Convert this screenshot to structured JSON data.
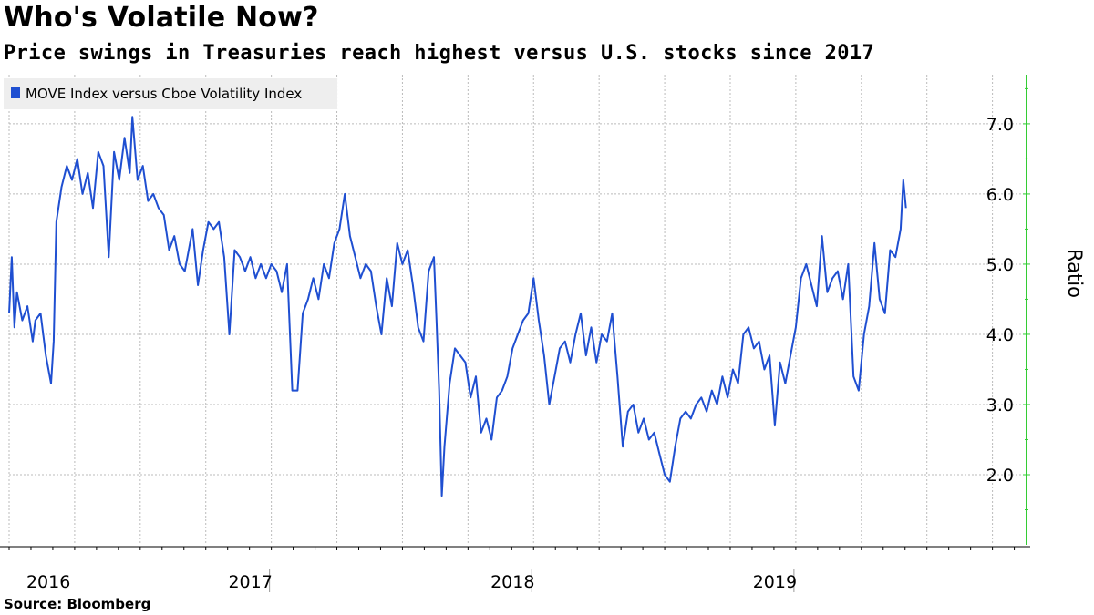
{
  "header": {
    "title": "Who's Volatile Now?",
    "subtitle": "Price swings in Treasuries reach highest versus U.S. stocks since 2017"
  },
  "footer": {
    "source": "Source:  Bloomberg"
  },
  "colors": {
    "series": "#1f4fd1",
    "axis": "#33cc33",
    "grid": "#bbbbbb"
  },
  "chart_data": {
    "type": "line",
    "ylabel": "Ratio",
    "ylim": [
      1.0,
      7.7
    ],
    "yticks": [
      2.0,
      3.0,
      4.0,
      5.0,
      6.0,
      7.0
    ],
    "ytick_labels": [
      "2.0",
      "3.0",
      "4.0",
      "5.0",
      "6.0",
      "7.0"
    ],
    "xlim": [
      2016.0,
      2019.88
    ],
    "year_labels": [
      {
        "label": "2016",
        "at": 2016.15
      },
      {
        "label": "2017",
        "at": 2016.92
      },
      {
        "label": "2018",
        "at": 2017.92
      },
      {
        "label": "2019",
        "at": 2018.92
      }
    ],
    "grid": true,
    "legend": {
      "position": "top-left",
      "entries": [
        "MOVE Index versus Cboe Volatility Index"
      ]
    },
    "series": [
      {
        "name": "MOVE Index versus Cboe Volatility Index",
        "points": [
          [
            2016.0,
            4.3
          ],
          [
            2016.01,
            5.1
          ],
          [
            2016.02,
            4.1
          ],
          [
            2016.03,
            4.6
          ],
          [
            2016.05,
            4.2
          ],
          [
            2016.07,
            4.4
          ],
          [
            2016.09,
            3.9
          ],
          [
            2016.1,
            4.2
          ],
          [
            2016.12,
            4.3
          ],
          [
            2016.14,
            3.7
          ],
          [
            2016.16,
            3.3
          ],
          [
            2016.17,
            3.9
          ],
          [
            2016.18,
            5.6
          ],
          [
            2016.2,
            6.1
          ],
          [
            2016.22,
            6.4
          ],
          [
            2016.24,
            6.2
          ],
          [
            2016.26,
            6.5
          ],
          [
            2016.28,
            6.0
          ],
          [
            2016.3,
            6.3
          ],
          [
            2016.32,
            5.8
          ],
          [
            2016.34,
            6.6
          ],
          [
            2016.36,
            6.4
          ],
          [
            2016.38,
            5.1
          ],
          [
            2016.4,
            6.6
          ],
          [
            2016.42,
            6.2
          ],
          [
            2016.44,
            6.8
          ],
          [
            2016.46,
            6.3
          ],
          [
            2016.47,
            7.1
          ],
          [
            2016.49,
            6.2
          ],
          [
            2016.51,
            6.4
          ],
          [
            2016.53,
            5.9
          ],
          [
            2016.55,
            6.0
          ],
          [
            2016.57,
            5.8
          ],
          [
            2016.59,
            5.7
          ],
          [
            2016.61,
            5.2
          ],
          [
            2016.63,
            5.4
          ],
          [
            2016.65,
            5.0
          ],
          [
            2016.67,
            4.9
          ],
          [
            2016.7,
            5.5
          ],
          [
            2016.72,
            4.7
          ],
          [
            2016.74,
            5.2
          ],
          [
            2016.76,
            5.6
          ],
          [
            2016.78,
            5.5
          ],
          [
            2016.8,
            5.6
          ],
          [
            2016.82,
            5.1
          ],
          [
            2016.84,
            4.0
          ],
          [
            2016.86,
            5.2
          ],
          [
            2016.88,
            5.1
          ],
          [
            2016.9,
            4.9
          ],
          [
            2016.92,
            5.1
          ],
          [
            2016.94,
            4.8
          ],
          [
            2016.96,
            5.0
          ],
          [
            2016.98,
            4.8
          ],
          [
            2017.0,
            5.0
          ],
          [
            2017.02,
            4.9
          ],
          [
            2017.04,
            4.6
          ],
          [
            2017.06,
            5.0
          ],
          [
            2017.08,
            3.2
          ],
          [
            2017.1,
            3.2
          ],
          [
            2017.12,
            4.3
          ],
          [
            2017.14,
            4.5
          ],
          [
            2017.16,
            4.8
          ],
          [
            2017.18,
            4.5
          ],
          [
            2017.2,
            5.0
          ],
          [
            2017.22,
            4.8
          ],
          [
            2017.24,
            5.3
          ],
          [
            2017.26,
            5.5
          ],
          [
            2017.28,
            6.0
          ],
          [
            2017.3,
            5.4
          ],
          [
            2017.32,
            5.1
          ],
          [
            2017.34,
            4.8
          ],
          [
            2017.36,
            5.0
          ],
          [
            2017.38,
            4.9
          ],
          [
            2017.4,
            4.4
          ],
          [
            2017.42,
            4.0
          ],
          [
            2017.44,
            4.8
          ],
          [
            2017.46,
            4.4
          ],
          [
            2017.48,
            5.3
          ],
          [
            2017.5,
            5.0
          ],
          [
            2017.52,
            5.2
          ],
          [
            2017.54,
            4.7
          ],
          [
            2017.56,
            4.1
          ],
          [
            2017.58,
            3.9
          ],
          [
            2017.6,
            4.9
          ],
          [
            2017.62,
            5.1
          ],
          [
            2017.63,
            4.2
          ],
          [
            2017.64,
            3.2
          ],
          [
            2017.65,
            1.7
          ],
          [
            2017.66,
            2.4
          ],
          [
            2017.68,
            3.3
          ],
          [
            2017.7,
            3.8
          ],
          [
            2017.72,
            3.7
          ],
          [
            2017.74,
            3.6
          ],
          [
            2017.76,
            3.1
          ],
          [
            2017.78,
            3.4
          ],
          [
            2017.8,
            2.6
          ],
          [
            2017.82,
            2.8
          ],
          [
            2017.84,
            2.5
          ],
          [
            2017.86,
            3.1
          ],
          [
            2017.88,
            3.2
          ],
          [
            2017.9,
            3.4
          ],
          [
            2017.92,
            3.8
          ],
          [
            2017.94,
            4.0
          ],
          [
            2017.96,
            4.2
          ],
          [
            2017.98,
            4.3
          ],
          [
            2018.0,
            4.8
          ],
          [
            2018.02,
            4.2
          ],
          [
            2018.04,
            3.7
          ],
          [
            2018.06,
            3.0
          ],
          [
            2018.08,
            3.4
          ],
          [
            2018.1,
            3.8
          ],
          [
            2018.12,
            3.9
          ],
          [
            2018.14,
            3.6
          ],
          [
            2018.16,
            4.0
          ],
          [
            2018.18,
            4.3
          ],
          [
            2018.2,
            3.7
          ],
          [
            2018.22,
            4.1
          ],
          [
            2018.24,
            3.6
          ],
          [
            2018.26,
            4.0
          ],
          [
            2018.28,
            3.9
          ],
          [
            2018.3,
            4.3
          ],
          [
            2018.32,
            3.4
          ],
          [
            2018.34,
            2.4
          ],
          [
            2018.36,
            2.9
          ],
          [
            2018.38,
            3.0
          ],
          [
            2018.4,
            2.6
          ],
          [
            2018.42,
            2.8
          ],
          [
            2018.44,
            2.5
          ],
          [
            2018.46,
            2.6
          ],
          [
            2018.48,
            2.3
          ],
          [
            2018.5,
            2.0
          ],
          [
            2018.52,
            1.9
          ],
          [
            2018.54,
            2.4
          ],
          [
            2018.56,
            2.8
          ],
          [
            2018.58,
            2.9
          ],
          [
            2018.6,
            2.8
          ],
          [
            2018.62,
            3.0
          ],
          [
            2018.64,
            3.1
          ],
          [
            2018.66,
            2.9
          ],
          [
            2018.68,
            3.2
          ],
          [
            2018.7,
            3.0
          ],
          [
            2018.72,
            3.4
          ],
          [
            2018.74,
            3.1
          ],
          [
            2018.76,
            3.5
          ],
          [
            2018.78,
            3.3
          ],
          [
            2018.8,
            4.0
          ],
          [
            2018.82,
            4.1
          ],
          [
            2018.84,
            3.8
          ],
          [
            2018.86,
            3.9
          ],
          [
            2018.88,
            3.5
          ],
          [
            2018.9,
            3.7
          ],
          [
            2018.92,
            2.7
          ],
          [
            2018.94,
            3.6
          ],
          [
            2018.96,
            3.3
          ],
          [
            2018.98,
            3.7
          ],
          [
            2019.0,
            4.1
          ],
          [
            2019.02,
            4.8
          ],
          [
            2019.04,
            5.0
          ],
          [
            2019.06,
            4.7
          ],
          [
            2019.08,
            4.4
          ],
          [
            2019.1,
            5.4
          ],
          [
            2019.12,
            4.6
          ],
          [
            2019.14,
            4.8
          ],
          [
            2019.16,
            4.9
          ],
          [
            2019.18,
            4.5
          ],
          [
            2019.2,
            5.0
          ],
          [
            2019.22,
            3.4
          ],
          [
            2019.24,
            3.2
          ],
          [
            2019.26,
            4.0
          ],
          [
            2019.28,
            4.4
          ],
          [
            2019.3,
            5.3
          ],
          [
            2019.32,
            4.5
          ],
          [
            2019.34,
            4.3
          ],
          [
            2019.36,
            5.2
          ],
          [
            2019.38,
            5.1
          ],
          [
            2019.4,
            5.5
          ],
          [
            2019.41,
            6.2
          ],
          [
            2019.42,
            5.8
          ]
        ]
      }
    ]
  }
}
